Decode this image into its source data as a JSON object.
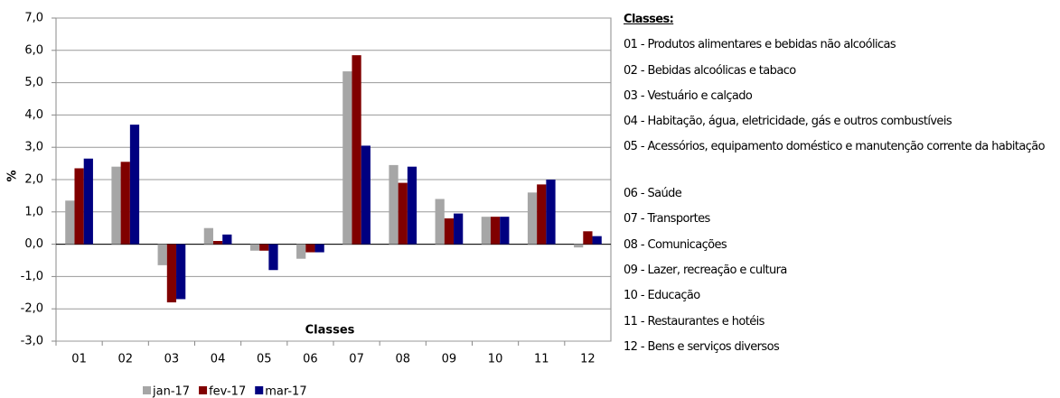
{
  "chart_data": {
    "type": "bar",
    "ylabel": "%",
    "xlabel": "Classes",
    "categories": [
      "01",
      "02",
      "03",
      "04",
      "05",
      "06",
      "07",
      "08",
      "09",
      "10",
      "11",
      "12"
    ],
    "series": [
      {
        "name": "jan-17",
        "color": "#a6a6a6",
        "values": [
          1.35,
          2.4,
          -0.65,
          0.5,
          -0.2,
          -0.45,
          5.35,
          2.45,
          1.4,
          0.85,
          1.6,
          -0.1
        ]
      },
      {
        "name": "fev-17",
        "color": "#800000",
        "values": [
          2.35,
          2.55,
          -1.8,
          0.1,
          -0.2,
          -0.25,
          5.85,
          1.9,
          0.8,
          0.85,
          1.85,
          0.4
        ]
      },
      {
        "name": "mar-17",
        "color": "#000080",
        "values": [
          2.65,
          3.7,
          -1.7,
          0.3,
          -0.8,
          -0.25,
          3.05,
          2.4,
          0.95,
          0.85,
          2.0,
          0.25
        ]
      }
    ],
    "ylim": [
      -3,
      7
    ],
    "yticks": [
      {
        "value": -3,
        "label": "-3,0"
      },
      {
        "value": -2,
        "label": "-2,0"
      },
      {
        "value": -1,
        "label": "-1,0"
      },
      {
        "value": 0,
        "label": "0,0"
      },
      {
        "value": 1,
        "label": "1,0"
      },
      {
        "value": 2,
        "label": "2,0"
      },
      {
        "value": 3,
        "label": "3,0"
      },
      {
        "value": 4,
        "label": "4,0"
      },
      {
        "value": 5,
        "label": "5,0"
      },
      {
        "value": 6,
        "label": "6,0"
      },
      {
        "value": 7,
        "label": "7,0"
      }
    ],
    "grid": true,
    "legend": "bottom"
  },
  "classes_panel": {
    "heading": "Classes:",
    "items": [
      "01 - Produtos alimentares e bebidas não alcoólicas",
      "02 - Bebidas alcoólicas e tabaco",
      "03 - Vestuário e calçado",
      "04 - Habitação, água, eletricidade, gás e outros combustíveis",
      "05 - Acessórios, equipamento doméstico e manutenção corrente da habitação",
      "06 - Saúde",
      "07 - Transportes",
      "08 - Comunicações",
      "09 - Lazer, recreação e cultura",
      "10 - Educação",
      "11 - Restaurantes e hotéis",
      "12 - Bens e serviços diversos"
    ]
  }
}
